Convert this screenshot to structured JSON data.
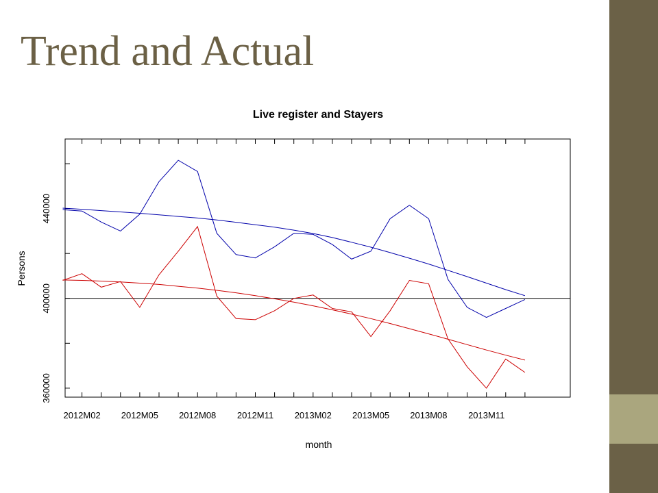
{
  "slide": {
    "title": "Trend and Actual",
    "accent_dark": "#6b6147",
    "accent_light": "#aaa67e"
  },
  "chart_data": {
    "type": "line",
    "title": "Live register and Stayers",
    "xlabel": "month",
    "ylabel": "Persons",
    "x": [
      "2012M01",
      "2012M02",
      "2012M03",
      "2012M04",
      "2012M05",
      "2012M06",
      "2012M07",
      "2012M08",
      "2012M09",
      "2012M10",
      "2012M11",
      "2012M12",
      "2013M01",
      "2013M02",
      "2013M03",
      "2013M04",
      "2013M05",
      "2013M06",
      "2013M07",
      "2013M08",
      "2013M09",
      "2013M10",
      "2013M11",
      "2013M12",
      "2014M01"
    ],
    "x_tick_labels": [
      "2012M02",
      "2012M05",
      "2012M08",
      "2012M11",
      "2013M02",
      "2013M05",
      "2013M08",
      "2013M11"
    ],
    "x_tick_label_index": [
      1,
      4,
      7,
      10,
      13,
      16,
      19,
      22
    ],
    "y_ticks": [
      360000,
      400000,
      440000
    ],
    "ylim": [
      356000,
      471000
    ],
    "hline": 400000,
    "series": [
      {
        "values": [
          439500,
          438900,
          434000,
          430000,
          437500,
          452000,
          461500,
          456500,
          429000,
          419500,
          418000,
          423000,
          429000,
          428500,
          424000,
          417500,
          421000,
          435500,
          441500,
          435500,
          408500,
          396000,
          391500,
          395500,
          399500
        ],
        "color": "#0000aa"
      },
      {
        "values": [
          440200,
          439700,
          439100,
          438500,
          437900,
          437200,
          436500,
          435800,
          434900,
          433900,
          432800,
          431700,
          430400,
          428900,
          427100,
          425000,
          422800,
          420400,
          417900,
          415300,
          412500,
          409700,
          406800,
          403900,
          401200
        ],
        "color": "#0000aa"
      },
      {
        "values": [
          408000,
          411000,
          405000,
          407500,
          396000,
          410500,
          421000,
          432000,
          401000,
          391000,
          390500,
          394500,
          400000,
          401500,
          395500,
          394000,
          383000,
          394500,
          408000,
          406500,
          382000,
          369500,
          360000,
          373000,
          367000
        ],
        "color": "#cc0000"
      },
      {
        "values": [
          408200,
          408000,
          407700,
          407300,
          406800,
          406200,
          405400,
          404600,
          403600,
          402500,
          401200,
          399800,
          398300,
          396700,
          394900,
          393000,
          391000,
          388800,
          386500,
          384200,
          381800,
          379400,
          377000,
          374700,
          372500
        ],
        "color": "#cc0000"
      }
    ]
  }
}
